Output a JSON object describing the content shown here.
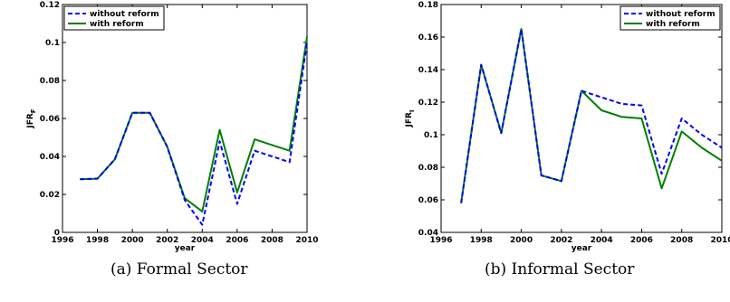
{
  "chart_data": [
    {
      "type": "line",
      "caption": "(a) Formal Sector",
      "xlabel": "year",
      "ylabel_main": "JFR",
      "ylabel_sub": "F",
      "xlim": [
        1996,
        2010
      ],
      "ylim": [
        0,
        0.12
      ],
      "xticks": [
        1996,
        1998,
        2000,
        2002,
        2004,
        2006,
        2008,
        2010
      ],
      "yticks": [
        0,
        0.02,
        0.04,
        0.06,
        0.08,
        0.1,
        0.12
      ],
      "ytick_labels": [
        "0",
        "0.02",
        "0.04",
        "0.06",
        "0.08",
        "0.1",
        "0.12"
      ],
      "legend_position": "top-left",
      "x": [
        1997,
        1998,
        1999,
        2000,
        2001,
        2002,
        2003,
        2004,
        2005,
        2006,
        2007,
        2008,
        2009,
        2010
      ],
      "series": [
        {
          "name": "without reform",
          "color": "#0000ff",
          "style": "dashed",
          "values": [
            0.028,
            0.0283,
            0.0385,
            0.063,
            0.063,
            0.045,
            0.017,
            0.004,
            0.048,
            0.015,
            0.043,
            0.04,
            0.037,
            0.1
          ]
        },
        {
          "name": "with reform",
          "color": "#007f00",
          "style": "solid",
          "values": [
            0.028,
            0.0283,
            0.0385,
            0.063,
            0.063,
            0.045,
            0.018,
            0.011,
            0.054,
            0.021,
            0.049,
            0.046,
            0.043,
            0.103
          ]
        }
      ]
    },
    {
      "type": "line",
      "caption": "(b) Informal Sector",
      "xlabel": "year",
      "ylabel_main": "JFR",
      "ylabel_sub": "I",
      "xlim": [
        1996,
        2010
      ],
      "ylim": [
        0.04,
        0.18
      ],
      "xticks": [
        1996,
        1998,
        2000,
        2002,
        2004,
        2006,
        2008,
        2010
      ],
      "yticks": [
        0.04,
        0.06,
        0.08,
        0.1,
        0.12,
        0.14,
        0.16,
        0.18
      ],
      "ytick_labels": [
        "0.04",
        "0.06",
        "0.08",
        "0.1",
        "0.12",
        "0.14",
        "0.16",
        "0.18"
      ],
      "legend_position": "top-right",
      "x": [
        1997,
        1998,
        1999,
        2000,
        2001,
        2002,
        2003,
        2004,
        2005,
        2006,
        2007,
        2008,
        2009,
        2010
      ],
      "series": [
        {
          "name": "without reform",
          "color": "#0000ff",
          "style": "dashed",
          "values": [
            0.058,
            0.143,
            0.101,
            0.165,
            0.075,
            0.0715,
            0.127,
            0.123,
            0.119,
            0.118,
            0.076,
            0.11,
            0.1,
            0.092
          ]
        },
        {
          "name": "with reform",
          "color": "#007f00",
          "style": "solid",
          "values": [
            0.058,
            0.143,
            0.101,
            0.165,
            0.075,
            0.0715,
            0.127,
            0.115,
            0.111,
            0.11,
            0.067,
            0.102,
            0.092,
            0.084
          ]
        }
      ]
    }
  ]
}
